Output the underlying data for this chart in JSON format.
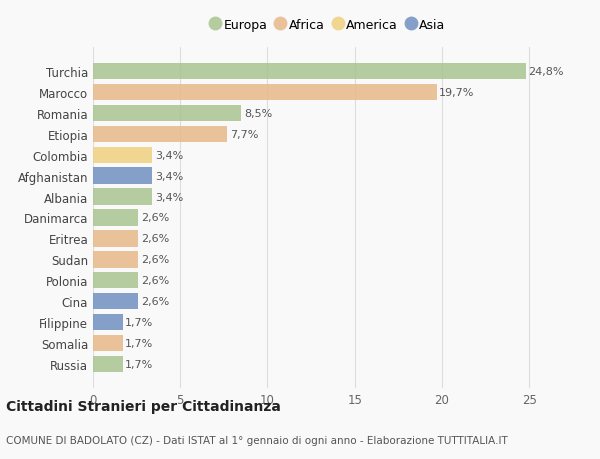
{
  "countries": [
    "Turchia",
    "Marocco",
    "Romania",
    "Etiopia",
    "Colombia",
    "Afghanistan",
    "Albania",
    "Danimarca",
    "Eritrea",
    "Sudan",
    "Polonia",
    "Cina",
    "Filippine",
    "Somalia",
    "Russia"
  ],
  "values": [
    24.8,
    19.7,
    8.5,
    7.7,
    3.4,
    3.4,
    3.4,
    2.6,
    2.6,
    2.6,
    2.6,
    2.6,
    1.7,
    1.7,
    1.7
  ],
  "labels": [
    "24,8%",
    "19,7%",
    "8,5%",
    "7,7%",
    "3,4%",
    "3,4%",
    "3,4%",
    "2,6%",
    "2,6%",
    "2,6%",
    "2,6%",
    "2,6%",
    "1,7%",
    "1,7%",
    "1,7%"
  ],
  "continents": [
    "Europa",
    "Africa",
    "Europa",
    "Africa",
    "America",
    "Asia",
    "Europa",
    "Europa",
    "Africa",
    "Africa",
    "Europa",
    "Asia",
    "Asia",
    "Africa",
    "Europa"
  ],
  "continent_colors": {
    "Europa": "#a8c490",
    "Africa": "#e8b98a",
    "America": "#f0d080",
    "Asia": "#7090c0"
  },
  "legend_labels": [
    "Europa",
    "Africa",
    "America",
    "Asia"
  ],
  "title": "Cittadini Stranieri per Cittadinanza",
  "subtitle": "COMUNE DI BADOLATO (CZ) - Dati ISTAT al 1° gennaio di ogni anno - Elaborazione TUTTITALIA.IT",
  "xlim": [
    0,
    27
  ],
  "xticks": [
    0,
    5,
    10,
    15,
    20,
    25
  ],
  "background_color": "#f9f9f9",
  "bar_alpha": 0.85,
  "grid_color": "#dddddd",
  "title_fontsize": 10,
  "subtitle_fontsize": 7.5,
  "label_fontsize": 8,
  "tick_fontsize": 8.5,
  "legend_fontsize": 9
}
